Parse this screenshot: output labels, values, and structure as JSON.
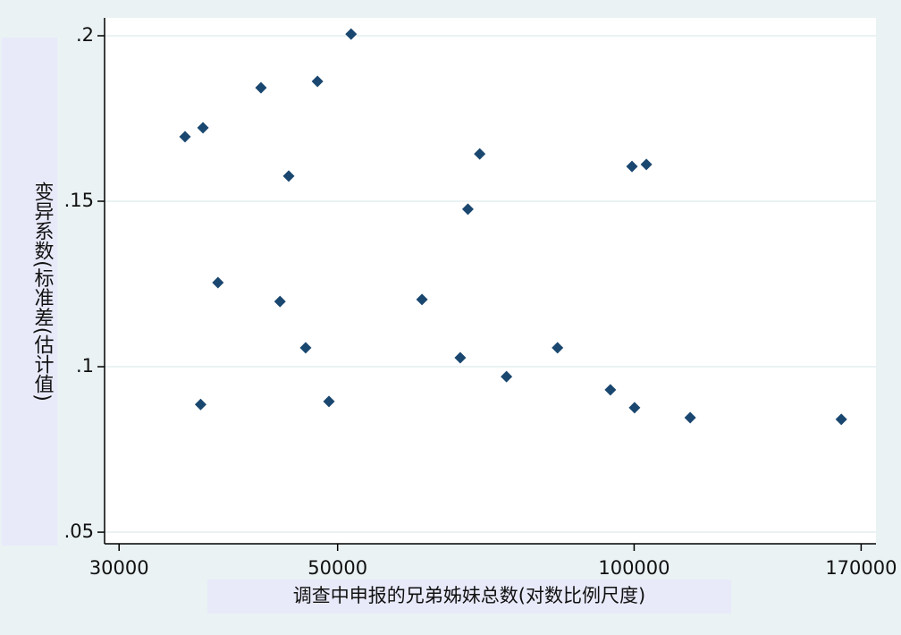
{
  "chart_data": {
    "type": "scatter",
    "x_label": "调查中申报的兄弟姊妹总数(对数比例尺度)",
    "y_label": "变异系数(标准差(估计值)",
    "x": [
      35000,
      36500,
      37800,
      36300,
      41800,
      44600,
      43700,
      46400,
      47700,
      49000,
      51600,
      60900,
      66600,
      67800,
      69700,
      74200,
      83600,
      94600,
      99500,
      102900,
      100100,
      114000,
      162300
    ],
    "values": [
      0.1695,
      0.1722,
      0.1254,
      0.0886,
      0.1843,
      0.1576,
      0.1197,
      0.1057,
      0.1862,
      0.0895,
      0.2005,
      0.1203,
      0.1027,
      0.1476,
      0.1643,
      0.097,
      0.1057,
      0.093,
      0.1605,
      0.1611,
      0.0876,
      0.0846,
      0.0841
    ],
    "color": "#1a476f",
    "xlim": [
      29000,
      176000
    ],
    "ylim": [
      0.0465,
      0.2054
    ],
    "xticks": [
      30000,
      50000,
      100000,
      170000
    ],
    "yticks": [
      {
        "value": 0.05,
        "label": ".05"
      },
      {
        "value": 0.1,
        "label": ".1"
      },
      {
        "value": 0.15,
        "label": ".15"
      },
      {
        "value": 0.2,
        "label": ".2"
      }
    ],
    "x_log": true,
    "grid": true
  }
}
